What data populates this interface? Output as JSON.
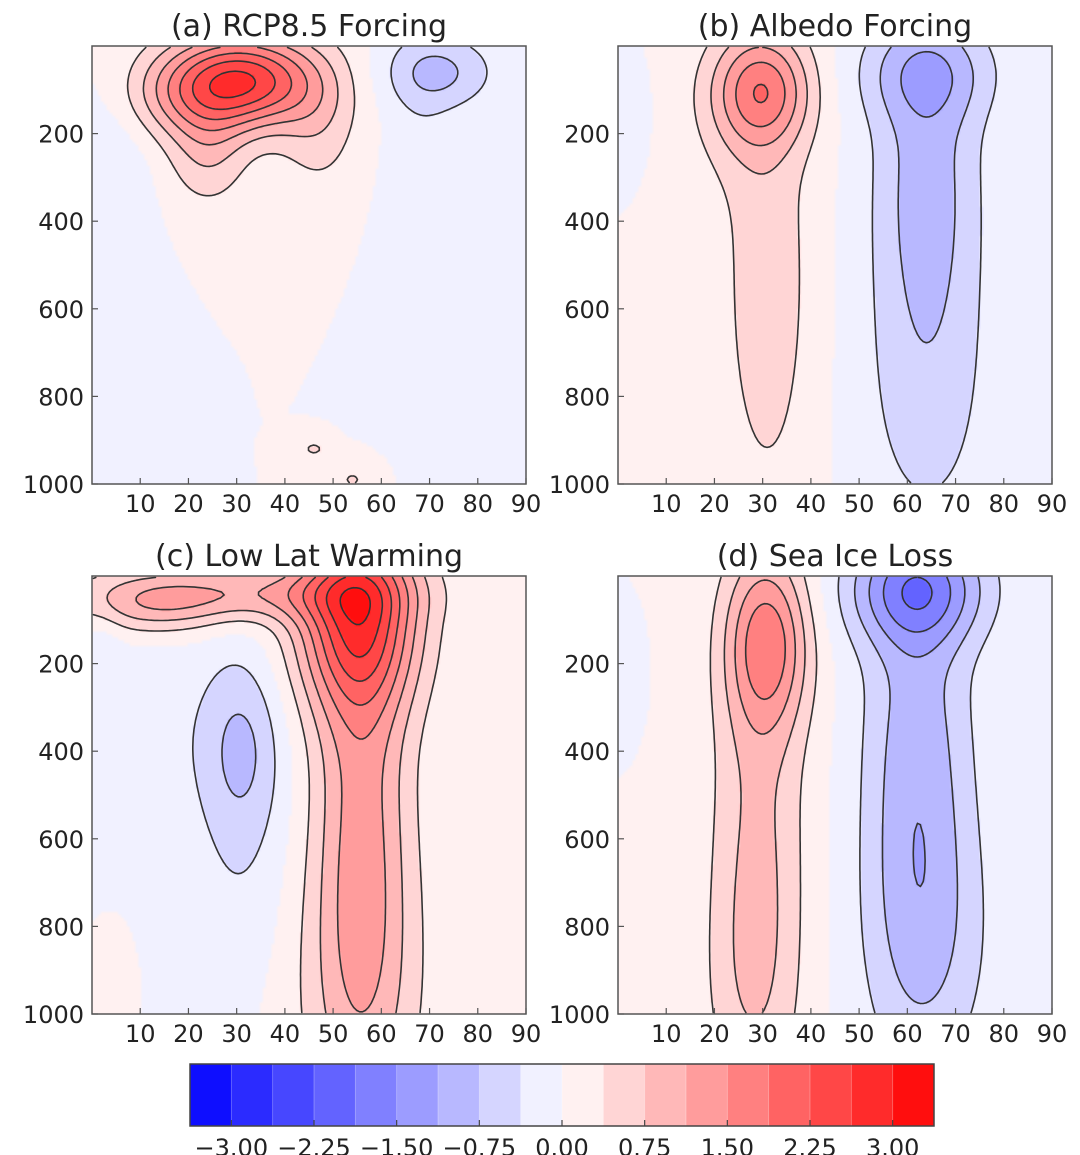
{
  "figure": {
    "panel_titles": [
      "(a) RCP8.5 Forcing",
      "(b) Albedo Forcing",
      "(c) Low Lat Warming",
      "(d) Sea Ice Loss"
    ],
    "colorbar_ticks": [
      "−3.00",
      "−2.25",
      "−1.50",
      "−0.75",
      "0.00",
      "0.75",
      "1.50",
      "2.25",
      "3.00"
    ]
  },
  "colors": {
    "negative_max": "#0000ff",
    "zero": "#ffffff",
    "positive_max": "#ff0000",
    "contour": "#333333"
  },
  "chart_data": [
    {
      "type": "heatmap",
      "title": "(a) RCP8.5 Forcing",
      "x_ticks": [
        10,
        20,
        30,
        40,
        50,
        60,
        70,
        80,
        90
      ],
      "y_ticks": [
        200,
        400,
        600,
        800,
        1000
      ],
      "xlim": [
        0,
        90
      ],
      "ylim": [
        1000,
        0
      ],
      "clim": [
        -3.375,
        3.375
      ],
      "contour_interval": 0.375,
      "features": [
        {
          "lat": 31,
          "p": 80,
          "value": 2.6,
          "sx": 11,
          "sy": 75
        },
        {
          "lat": 24,
          "p": 240,
          "value": 0.7,
          "sx": 6,
          "sy": 90
        },
        {
          "lat": 47,
          "p": 190,
          "value": 0.5,
          "sx": 6,
          "sy": 110
        },
        {
          "lat": 17,
          "p": 120,
          "value": 0.5,
          "sx": 8,
          "sy": 70
        },
        {
          "lat": 72,
          "p": 60,
          "value": -0.8,
          "sx": 8,
          "sy": 60
        },
        {
          "lat": 68,
          "p": 340,
          "value": -0.25,
          "sx": 5,
          "sy": 250
        },
        {
          "lat": 4,
          "p": 300,
          "value": -0.3,
          "sx": 6,
          "sy": 160
        },
        {
          "lat": 46,
          "p": 920,
          "value": 0.45,
          "sx": 2,
          "sy": 15
        },
        {
          "lat": 54,
          "p": 990,
          "value": 0.4,
          "sx": 3,
          "sy": 25
        }
      ]
    },
    {
      "type": "heatmap",
      "title": "(b) Albedo Forcing",
      "x_ticks": [
        10,
        20,
        30,
        40,
        50,
        60,
        70,
        80,
        90
      ],
      "y_ticks": [
        200,
        400,
        600,
        800,
        1000
      ],
      "xlim": [
        0,
        90
      ],
      "ylim": [
        1000,
        0
      ],
      "clim": [
        -3.375,
        3.375
      ],
      "contour_interval": 0.375,
      "features": [
        {
          "lat": 30,
          "p": 100,
          "value": 1.4,
          "sx": 7,
          "sy": 90
        },
        {
          "lat": 31,
          "p": 550,
          "value": 0.6,
          "sx": 7,
          "sy": 380
        },
        {
          "lat": 24,
          "p": 150,
          "value": 0.3,
          "sx": 8,
          "sy": 140
        },
        {
          "lat": 64,
          "p": 300,
          "value": -0.9,
          "sx": 8,
          "sy": 280
        },
        {
          "lat": 64,
          "p": 60,
          "value": -0.7,
          "sx": 10,
          "sy": 80
        },
        {
          "lat": 64,
          "p": 820,
          "value": -0.45,
          "sx": 10,
          "sy": 260
        },
        {
          "lat": 1,
          "p": 150,
          "value": -0.3,
          "sx": 3,
          "sy": 70
        }
      ]
    },
    {
      "type": "heatmap",
      "title": "(c) Low Lat Warming",
      "x_ticks": [
        10,
        20,
        30,
        40,
        50,
        60,
        70,
        80,
        90
      ],
      "y_ticks": [
        200,
        400,
        600,
        800,
        1000
      ],
      "xlim": [
        0,
        90
      ],
      "ylim": [
        1000,
        0
      ],
      "clim": [
        -3.375,
        3.375
      ],
      "contour_interval": 0.375,
      "features": [
        {
          "lat": 55,
          "p": 90,
          "value": 2.2,
          "sx": 9,
          "sy": 150
        },
        {
          "lat": 56,
          "p": 550,
          "value": 1.2,
          "sx": 7,
          "sy": 420
        },
        {
          "lat": 55,
          "p": 950,
          "value": 0.45,
          "sx": 11,
          "sy": 250
        },
        {
          "lat": 30,
          "p": 40,
          "value": 1.0,
          "sx": 20,
          "sy": 45
        },
        {
          "lat": 12,
          "p": 70,
          "value": 0.7,
          "sx": 10,
          "sy": 50
        },
        {
          "lat": 31,
          "p": 380,
          "value": -0.7,
          "sx": 6,
          "sy": 150
        },
        {
          "lat": 31,
          "p": 650,
          "value": -0.3,
          "sx": 7,
          "sy": 230
        },
        {
          "lat": 12,
          "p": 350,
          "value": -0.25,
          "sx": 9,
          "sy": 180
        },
        {
          "lat": 4,
          "p": 920,
          "value": 0.35,
          "sx": 2,
          "sy": 60
        },
        {
          "lat": 82,
          "p": 990,
          "value": 0.3,
          "sx": 3,
          "sy": 25
        },
        {
          "lat": 2,
          "p": 160,
          "value": -0.25,
          "sx": 3,
          "sy": 60
        }
      ]
    },
    {
      "type": "heatmap",
      "title": "(d) Sea Ice Loss",
      "x_ticks": [
        10,
        20,
        30,
        40,
        50,
        60,
        70,
        80,
        90
      ],
      "y_ticks": [
        200,
        400,
        600,
        800,
        1000
      ],
      "xlim": [
        0,
        90
      ],
      "ylim": [
        1000,
        0
      ],
      "clim": [
        -3.375,
        3.375
      ],
      "contour_interval": 0.375,
      "features": [
        {
          "lat": 31,
          "p": 150,
          "value": 1.45,
          "sx": 6,
          "sy": 140
        },
        {
          "lat": 29,
          "p": 600,
          "value": 0.8,
          "sx": 7,
          "sy": 400
        },
        {
          "lat": 27,
          "p": 950,
          "value": 0.3,
          "sx": 7,
          "sy": 200
        },
        {
          "lat": 62,
          "p": 30,
          "value": -1.4,
          "sx": 10,
          "sy": 90
        },
        {
          "lat": 62,
          "p": 450,
          "value": -1.0,
          "sx": 8,
          "sy": 400
        },
        {
          "lat": 65,
          "p": 850,
          "value": -0.4,
          "sx": 10,
          "sy": 220
        },
        {
          "lat": 1,
          "p": 230,
          "value": -0.25,
          "sx": 2,
          "sy": 60
        }
      ]
    }
  ]
}
